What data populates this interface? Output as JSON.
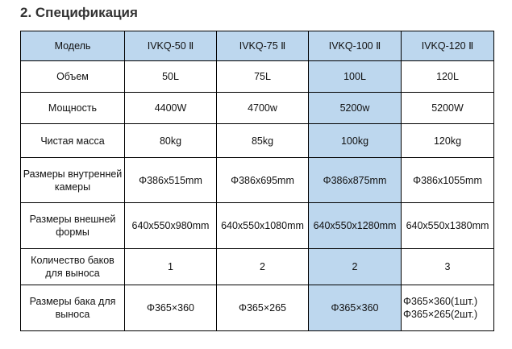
{
  "title": "2.  Спецификация",
  "colors": {
    "highlight": "#bdd7ee"
  },
  "header": [
    "Модель",
    "IVKQ-50 Ⅱ",
    "IVKQ-75 Ⅱ",
    "IVKQ-100 Ⅱ",
    "IVKQ-120 Ⅱ"
  ],
  "rows": [
    [
      "Объем",
      "50L",
      "75L",
      "100L",
      "120L"
    ],
    [
      "Мощность",
      "4400W",
      "4700w",
      "5200w",
      "5200W"
    ],
    [
      "Чистая масса",
      "80kg",
      "85kg",
      "100kg",
      "120kg"
    ],
    [
      "Размеры внутренней камеры",
      "Φ386x515mm",
      "Φ386x695mm",
      "Φ386x875mm",
      "Φ386x1055mm"
    ],
    [
      "Размеры внешней формы",
      "640x550x980mm",
      "640x550x1080mm",
      "640x550x1280mm",
      "640x550x1380mm"
    ],
    [
      "Количество баков для выноса",
      "1",
      "2",
      "2",
      "3"
    ],
    [
      "Размеры бака для выноса",
      "Φ365×360",
      "Φ365×265",
      "Φ365×360",
      "Φ365×360(1шт.)\nΦ365×265(2шт.)"
    ]
  ]
}
